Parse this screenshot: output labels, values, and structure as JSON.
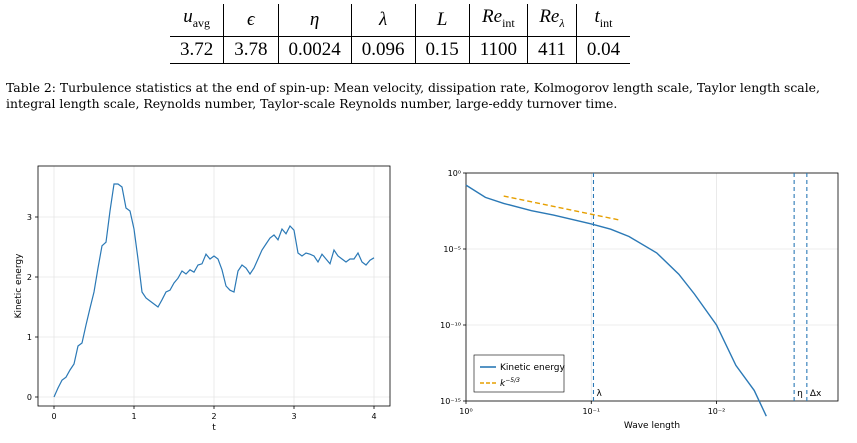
{
  "table": {
    "headers": [
      "u_avg",
      "ϵ",
      "η",
      "λ",
      "L",
      "Re_int",
      "Re_λ",
      "t_int"
    ],
    "values": [
      "3.72",
      "3.78",
      "0.0024",
      "0.096",
      "0.15",
      "1100",
      "411",
      "0.04"
    ]
  },
  "caption": {
    "label": "Table 2:",
    "text": "Turbulence statistics at the end of spin-up: Mean velocity, dissipation rate, Kolmogorov length scale, Taylor length scale, integral length scale, Reynolds number, Taylor-scale Reynolds number, large-eddy turnover time."
  },
  "chart_data": [
    {
      "type": "line",
      "xlabel": "t",
      "ylabel": "Kinetic energy",
      "xlim": [
        -0.2,
        4.2
      ],
      "ylim": [
        -0.15,
        3.85
      ],
      "xticks": [
        "0",
        "1",
        "2",
        "3",
        "4"
      ],
      "yticks": [
        "0",
        "1",
        "2",
        "3"
      ],
      "grid": true,
      "color": "#2b79b6",
      "x": [
        0,
        0.05,
        0.1,
        0.15,
        0.2,
        0.25,
        0.3,
        0.35,
        0.4,
        0.45,
        0.5,
        0.55,
        0.6,
        0.65,
        0.7,
        0.75,
        0.8,
        0.85,
        0.9,
        0.95,
        1.0,
        1.05,
        1.1,
        1.15,
        1.2,
        1.25,
        1.3,
        1.35,
        1.4,
        1.45,
        1.5,
        1.55,
        1.6,
        1.65,
        1.7,
        1.75,
        1.8,
        1.85,
        1.9,
        1.95,
        2.0,
        2.05,
        2.1,
        2.15,
        2.2,
        2.25,
        2.3,
        2.35,
        2.4,
        2.45,
        2.5,
        2.55,
        2.6,
        2.65,
        2.7,
        2.75,
        2.8,
        2.85,
        2.9,
        2.95,
        3.0,
        3.05,
        3.1,
        3.15,
        3.2,
        3.25,
        3.3,
        3.35,
        3.4,
        3.45,
        3.5,
        3.55,
        3.6,
        3.65,
        3.7,
        3.75,
        3.8,
        3.85,
        3.9,
        3.95,
        4.0
      ],
      "y": [
        0,
        0.15,
        0.28,
        0.33,
        0.45,
        0.55,
        0.85,
        0.9,
        1.2,
        1.48,
        1.75,
        2.15,
        2.52,
        2.58,
        3.1,
        3.55,
        3.55,
        3.5,
        3.15,
        3.1,
        2.8,
        2.3,
        1.75,
        1.65,
        1.6,
        1.55,
        1.5,
        1.62,
        1.75,
        1.78,
        1.9,
        1.98,
        2.1,
        2.05,
        2.12,
        2.08,
        2.2,
        2.22,
        2.38,
        2.3,
        2.35,
        2.3,
        2.12,
        1.85,
        1.78,
        1.75,
        2.1,
        2.2,
        2.15,
        2.05,
        2.15,
        2.3,
        2.45,
        2.55,
        2.65,
        2.7,
        2.62,
        2.8,
        2.72,
        2.85,
        2.78,
        2.4,
        2.35,
        2.4,
        2.38,
        2.35,
        2.25,
        2.38,
        2.3,
        2.22,
        2.45,
        2.35,
        2.3,
        2.25,
        2.3,
        2.3,
        2.4,
        2.25,
        2.2,
        2.28,
        2.32
      ]
    },
    {
      "type": "line",
      "xlabel": "Wave length",
      "ylabel": "",
      "log_x": true,
      "log_y": true,
      "xticks": [
        "10⁰",
        "10⁻¹",
        "10⁻²"
      ],
      "yticks": [
        "10⁰",
        "10⁻⁵",
        "10⁻¹⁰",
        "10⁻¹⁵"
      ],
      "grid": true,
      "legend_position": "bottom-left",
      "series": [
        {
          "name": "Kinetic energy",
          "color": "#2b79b6",
          "style": "solid",
          "x": [
            1,
            0.7,
            0.5,
            0.3,
            0.2,
            0.1,
            0.07,
            0.05,
            0.03,
            0.02,
            0.015,
            0.01,
            0.007,
            0.005,
            0.004
          ],
          "y": [
            0.16,
            0.025,
            0.01,
            0.0033,
            0.0017,
            0.00045,
            0.0002,
            6.6e-05,
            5.5e-06,
            2.2e-07,
            1.1e-08,
            1e-10,
            2.2e-13,
            5e-15,
            1e-16
          ]
        },
        {
          "name": "k^(−5/3)",
          "color": "#e69f00",
          "style": "dashed",
          "x": [
            0.5,
            0.06
          ],
          "y": [
            0.03,
            0.00082
          ]
        }
      ],
      "vlines": [
        {
          "label": "λ",
          "x": 0.096
        },
        {
          "label": "η",
          "x": 0.0024
        },
        {
          "label": "Δx",
          "x": 0.0019
        }
      ]
    }
  ]
}
